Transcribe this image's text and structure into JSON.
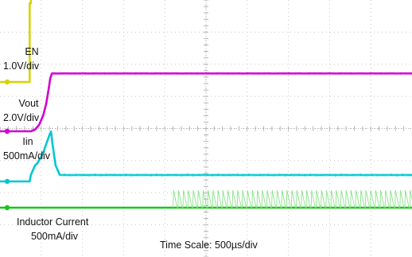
{
  "chart_data": {
    "type": "line",
    "title": "",
    "xlabel": "Time Scale: 500µs/div",
    "ylabel": "",
    "grid": true,
    "divisions": {
      "x": 10,
      "y": 8
    },
    "series": [
      {
        "name": "EN",
        "scale": "1.0V/div",
        "color": "#d4d400",
        "x": [
          0,
          0.72,
          0.72,
          0.75,
          0.75,
          10
        ],
        "y": [
          0,
          0,
          2.45,
          2.45,
          2.6,
          2.6
        ]
      },
      {
        "name": "Vout",
        "scale": "2.0V/div",
        "color": "#d000d0",
        "x": [
          0,
          0.75,
          0.85,
          0.95,
          1.05,
          1.12,
          1.18,
          1.22,
          1.26,
          10
        ],
        "y": [
          0,
          0,
          0.05,
          0.2,
          0.5,
          0.85,
          1.3,
          1.65,
          1.8,
          1.8
        ]
      },
      {
        "name": "Iin",
        "scale": "500mA/div",
        "color": "#00c8d0",
        "x": [
          0,
          0.72,
          0.75,
          0.8,
          0.85,
          0.9,
          1.05,
          1.2,
          1.24,
          1.27,
          1.35,
          1.45,
          10
        ],
        "y": [
          0,
          0,
          0.2,
          0.35,
          0.5,
          0.55,
          0.9,
          1.45,
          1.55,
          1.2,
          0.5,
          0.2,
          0.2
        ]
      },
      {
        "name": "Inductor Current",
        "scale": "500mA/div",
        "color": "#14c814",
        "x": [
          0,
          4.2,
          10
        ],
        "y": [
          0,
          0,
          0
        ]
      }
    ],
    "annotations": [
      "Time Scale: 500µs/div"
    ]
  }
}
